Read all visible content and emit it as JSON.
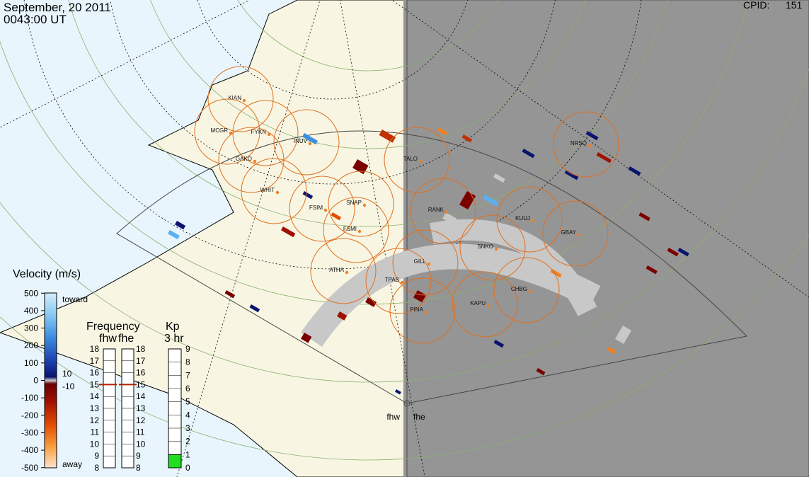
{
  "header": {
    "date": "September, 20 2011",
    "time": "0043:00 UT",
    "cpid_label": "CPID:",
    "cpid": "151"
  },
  "stations": [
    "KIAN",
    "MCGR",
    "FYKN",
    "INUV",
    "GAKO",
    "WHIT",
    "FSIM",
    "SNAP",
    "FSMI",
    "RANK",
    "TALO",
    "NRSQ",
    "GBAY",
    "KUUJ",
    "SNKO",
    "GILL",
    "ATHA",
    "TPAS",
    "PINA",
    "KAPU",
    "CHBG"
  ],
  "radars": [
    "fhw",
    "fhe"
  ],
  "velocity_scale": {
    "title": "Velocity (m/s)",
    "ticks": [
      500,
      400,
      300,
      200,
      100,
      0,
      -100,
      -200,
      -300,
      -400,
      -500
    ],
    "toward": "toward",
    "away": "away",
    "threshold_labels": [
      "10",
      "-10"
    ]
  },
  "frequency": {
    "title": "Frequency",
    "radars": [
      "fhw",
      "fhe"
    ],
    "ticks": [
      18,
      17,
      16,
      15,
      14,
      13,
      12,
      11,
      10,
      9,
      8
    ],
    "values": [
      15,
      15
    ]
  },
  "kp": {
    "title": "Kp",
    "subtitle": "3 hr",
    "ticks": [
      9,
      8,
      7,
      6,
      5,
      4,
      3,
      2,
      1,
      0
    ],
    "value": 1
  }
}
